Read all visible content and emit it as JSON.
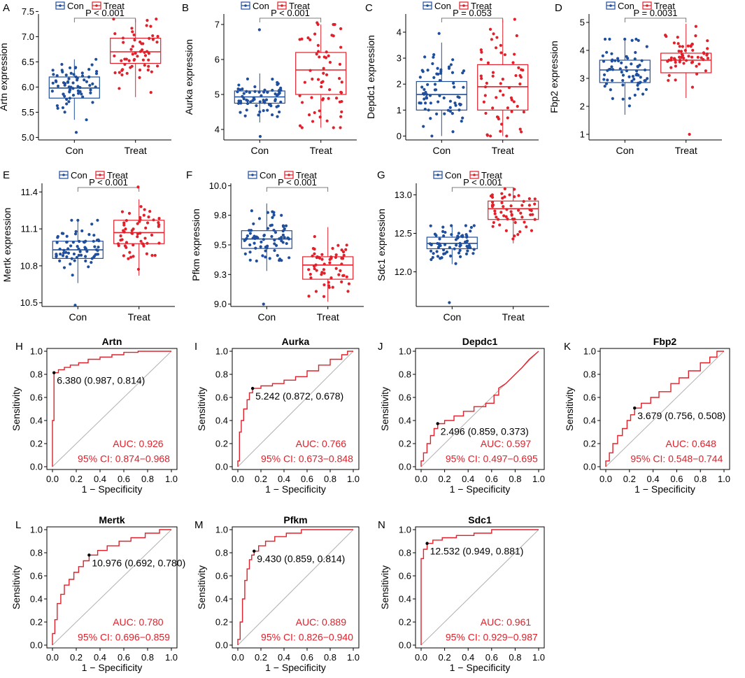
{
  "legend": {
    "con": "Con",
    "treat": "Treat"
  },
  "colors": {
    "con": "#1f4e9c",
    "treat": "#e0202a",
    "axis": "#000000",
    "diag": "#b0b0b0",
    "roc": "#e0202a"
  },
  "chart_data": [
    {
      "panel": "A",
      "type": "box",
      "gene": "Artn",
      "ylabel": "Artn expression",
      "categories": [
        "Con",
        "Treat"
      ],
      "pvalue": "P < 0.001",
      "ylim": [
        4.95,
        7.45
      ],
      "yticks": [
        5.0,
        5.5,
        6.0,
        6.5,
        7.0,
        7.5
      ],
      "series": [
        {
          "name": "Con",
          "q1": 5.78,
          "median": 5.98,
          "q3": 6.2,
          "lo": 5.35,
          "hi": 6.55,
          "min": 5.1,
          "max": 6.55,
          "n": 70
        },
        {
          "name": "Treat",
          "q1": 6.47,
          "median": 6.7,
          "q3": 6.97,
          "lo": 5.8,
          "hi": 7.35,
          "min": 5.8,
          "max": 7.35,
          "n": 58
        }
      ]
    },
    {
      "panel": "B",
      "type": "box",
      "gene": "Aurka",
      "ylabel": "Aurka expression",
      "categories": [
        "Con",
        "Treat"
      ],
      "pvalue": "P < 0.001",
      "ylim": [
        3.7,
        7.3
      ],
      "yticks": [
        4,
        5,
        6,
        7
      ],
      "series": [
        {
          "name": "Con",
          "q1": 4.75,
          "median": 4.93,
          "q3": 5.1,
          "lo": 4.2,
          "hi": 5.6,
          "min": 3.8,
          "max": 6.85,
          "n": 70
        },
        {
          "name": "Treat",
          "q1": 5.0,
          "median": 5.7,
          "q3": 6.2,
          "lo": 4.05,
          "hi": 7.0,
          "min": 4.05,
          "max": 7.05,
          "n": 58
        }
      ]
    },
    {
      "panel": "C",
      "type": "box",
      "gene": "Depdc1",
      "ylabel": "Depdc1 expression",
      "categories": [
        "Con",
        "Treat"
      ],
      "pvalue": "P = 0.053",
      "ylim": [
        -0.15,
        4.7
      ],
      "yticks": [
        0,
        1,
        2,
        3,
        4
      ],
      "series": [
        {
          "name": "Con",
          "q1": 1.0,
          "median": 1.6,
          "q3": 2.1,
          "lo": 0.0,
          "hi": 3.6,
          "min": 0.0,
          "max": 3.95,
          "n": 70
        },
        {
          "name": "Treat",
          "q1": 1.0,
          "median": 1.9,
          "q3": 2.75,
          "lo": 0.0,
          "hi": 4.5,
          "min": 0.0,
          "max": 4.5,
          "n": 58
        }
      ]
    },
    {
      "panel": "D",
      "type": "box",
      "gene": "Fbp2",
      "ylabel": "Fbp2 expression",
      "categories": [
        "Con",
        "Treat"
      ],
      "pvalue": "P = 0.0031",
      "ylim": [
        0.8,
        5.3
      ],
      "yticks": [
        1,
        2,
        3,
        4,
        5
      ],
      "series": [
        {
          "name": "Con",
          "q1": 2.85,
          "median": 3.3,
          "q3": 3.65,
          "lo": 1.7,
          "hi": 4.4,
          "min": 1.7,
          "max": 4.4,
          "n": 70
        },
        {
          "name": "Treat",
          "q1": 3.2,
          "median": 3.65,
          "q3": 3.9,
          "lo": 2.3,
          "hi": 4.95,
          "min": 1.0,
          "max": 4.95,
          "n": 58
        }
      ]
    },
    {
      "panel": "E",
      "type": "box",
      "gene": "Mertk",
      "ylabel": "Mertk expression",
      "categories": [
        "Con",
        "Treat"
      ],
      "pvalue": "P < 0.001",
      "ylim": [
        10.47,
        11.47
      ],
      "yticks": [
        10.5,
        10.8,
        11.1,
        11.4
      ],
      "series": [
        {
          "name": "Con",
          "q1": 10.86,
          "median": 10.93,
          "q3": 11.0,
          "lo": 10.66,
          "hi": 11.17,
          "min": 10.48,
          "max": 11.17,
          "n": 70
        },
        {
          "name": "Treat",
          "q1": 10.98,
          "median": 11.07,
          "q3": 11.17,
          "lo": 10.72,
          "hi": 11.34,
          "min": 10.72,
          "max": 11.44,
          "n": 58
        }
      ]
    },
    {
      "panel": "F",
      "type": "box",
      "gene": "Pfkm",
      "ylabel": "Pfkm expression",
      "categories": [
        "Con",
        "Treat"
      ],
      "pvalue": "P < 0.001",
      "ylim": [
        8.98,
        10.02
      ],
      "yticks": [
        9.0,
        9.25,
        9.5,
        9.75,
        10.0
      ],
      "series": [
        {
          "name": "Con",
          "q1": 9.47,
          "median": 9.55,
          "q3": 9.62,
          "lo": 9.28,
          "hi": 9.85,
          "min": 9.0,
          "max": 9.85,
          "n": 70
        },
        {
          "name": "Treat",
          "q1": 9.21,
          "median": 9.33,
          "q3": 9.4,
          "lo": 9.02,
          "hi": 9.65,
          "min": 9.02,
          "max": 9.65,
          "n": 58
        }
      ]
    },
    {
      "panel": "G",
      "type": "box",
      "gene": "Sdc1",
      "ylabel": "Sdc1 expression",
      "categories": [
        "Con",
        "Treat"
      ],
      "pvalue": "P < 0.001",
      "ylim": [
        11.55,
        13.15
      ],
      "yticks": [
        12.0,
        12.5,
        13.0
      ],
      "series": [
        {
          "name": "Con",
          "q1": 12.3,
          "median": 12.37,
          "q3": 12.45,
          "lo": 12.1,
          "hi": 12.6,
          "min": 11.6,
          "max": 12.6,
          "n": 70
        },
        {
          "name": "Treat",
          "q1": 12.68,
          "median": 12.82,
          "q3": 12.92,
          "lo": 12.37,
          "hi": 13.1,
          "min": 12.37,
          "max": 13.1,
          "n": 58
        }
      ]
    },
    {
      "panel": "H",
      "type": "line",
      "title": "Artn",
      "xlabel": "1 − Specificity",
      "ylabel": "Sensitivity",
      "xlim": [
        0,
        1
      ],
      "ylim": [
        0,
        1
      ],
      "ticks": [
        "0.0",
        "0.2",
        "0.4",
        "0.6",
        "0.8",
        "1.0"
      ],
      "cutoff": {
        "label": "6.380 (0.987, 0.814)",
        "fpr": 0.013,
        "tpr": 0.814
      },
      "auc": "AUC: 0.926",
      "ci": "95% CI: 0.874−0.968",
      "roc": [
        [
          0,
          0
        ],
        [
          0,
          0.4
        ],
        [
          0.013,
          0.4
        ],
        [
          0.013,
          0.814
        ],
        [
          0.05,
          0.814
        ],
        [
          0.05,
          0.84
        ],
        [
          0.1,
          0.84
        ],
        [
          0.1,
          0.86
        ],
        [
          0.15,
          0.86
        ],
        [
          0.15,
          0.88
        ],
        [
          0.22,
          0.88
        ],
        [
          0.22,
          0.9
        ],
        [
          0.3,
          0.9
        ],
        [
          0.3,
          0.93
        ],
        [
          0.4,
          0.93
        ],
        [
          0.4,
          0.95
        ],
        [
          0.5,
          0.95
        ],
        [
          0.5,
          0.97
        ],
        [
          0.6,
          0.97
        ],
        [
          0.6,
          0.99
        ],
        [
          0.72,
          0.99
        ],
        [
          0.72,
          1
        ],
        [
          1,
          1
        ]
      ]
    },
    {
      "panel": "I",
      "type": "line",
      "title": "Aurka",
      "xlabel": "1 − Specificity",
      "ylabel": "Sensitivity",
      "xlim": [
        0,
        1
      ],
      "ylim": [
        0,
        1
      ],
      "ticks": [
        "0.0",
        "0.2",
        "0.4",
        "0.6",
        "0.8",
        "1.0"
      ],
      "cutoff": {
        "label": "5.242 (0.872, 0.678)",
        "fpr": 0.128,
        "tpr": 0.678
      },
      "auc": "AUC: 0.766",
      "ci": "95% CI: 0.673−0.848",
      "roc": [
        [
          0,
          0
        ],
        [
          0,
          0.05
        ],
        [
          0.014,
          0.05
        ],
        [
          0.014,
          0.3
        ],
        [
          0.03,
          0.3
        ],
        [
          0.03,
          0.4
        ],
        [
          0.05,
          0.4
        ],
        [
          0.05,
          0.5
        ],
        [
          0.08,
          0.5
        ],
        [
          0.08,
          0.58
        ],
        [
          0.1,
          0.58
        ],
        [
          0.1,
          0.64
        ],
        [
          0.128,
          0.64
        ],
        [
          0.128,
          0.678
        ],
        [
          0.2,
          0.678
        ],
        [
          0.2,
          0.7
        ],
        [
          0.3,
          0.7
        ],
        [
          0.3,
          0.72
        ],
        [
          0.4,
          0.72
        ],
        [
          0.4,
          0.75
        ],
        [
          0.5,
          0.75
        ],
        [
          0.5,
          0.78
        ],
        [
          0.6,
          0.78
        ],
        [
          0.6,
          0.83
        ],
        [
          0.7,
          0.83
        ],
        [
          0.7,
          0.88
        ],
        [
          0.8,
          0.88
        ],
        [
          0.8,
          0.93
        ],
        [
          0.9,
          0.93
        ],
        [
          0.9,
          0.97
        ],
        [
          0.95,
          0.97
        ],
        [
          0.95,
          1
        ],
        [
          1,
          1
        ]
      ]
    },
    {
      "panel": "J",
      "type": "line",
      "title": "Depdc1",
      "xlabel": "1 − Specificity",
      "ylabel": "Sensitivity",
      "xlim": [
        0,
        1
      ],
      "ylim": [
        0,
        1
      ],
      "ticks": [
        "0.0",
        "0.2",
        "0.4",
        "0.6",
        "0.8",
        "1.0"
      ],
      "cutoff": {
        "label": "2.496 (0.859, 0.373)",
        "fpr": 0.141,
        "tpr": 0.373
      },
      "auc": "AUC: 0.597",
      "ci": "95% CI: 0.497−0.695",
      "roc": [
        [
          0,
          0
        ],
        [
          0,
          0.05
        ],
        [
          0.02,
          0.05
        ],
        [
          0.02,
          0.12
        ],
        [
          0.05,
          0.12
        ],
        [
          0.05,
          0.2
        ],
        [
          0.08,
          0.2
        ],
        [
          0.08,
          0.27
        ],
        [
          0.11,
          0.27
        ],
        [
          0.11,
          0.33
        ],
        [
          0.141,
          0.33
        ],
        [
          0.141,
          0.373
        ],
        [
          0.2,
          0.373
        ],
        [
          0.2,
          0.4
        ],
        [
          0.28,
          0.4
        ],
        [
          0.28,
          0.44
        ],
        [
          0.36,
          0.44
        ],
        [
          0.36,
          0.48
        ],
        [
          0.45,
          0.48
        ],
        [
          0.45,
          0.52
        ],
        [
          0.55,
          0.52
        ],
        [
          0.55,
          0.55
        ],
        [
          0.62,
          0.55
        ],
        [
          0.62,
          0.62
        ],
        [
          0.66,
          0.62
        ],
        [
          0.66,
          0.68
        ],
        [
          0.72,
          0.72
        ],
        [
          0.8,
          0.8
        ],
        [
          0.86,
          0.86
        ],
        [
          0.92,
          0.93
        ],
        [
          1,
          1
        ]
      ]
    },
    {
      "panel": "K",
      "type": "line",
      "title": "Fbp2",
      "xlabel": "1 − Specificity",
      "ylabel": "Sensitivity",
      "xlim": [
        0,
        1
      ],
      "ylim": [
        0,
        1
      ],
      "ticks": [
        "0.0",
        "0.2",
        "0.4",
        "0.6",
        "0.8",
        "1.0"
      ],
      "cutoff": {
        "label": "3.679 (0.756, 0.508)",
        "fpr": 0.244,
        "tpr": 0.508
      },
      "auc": "AUC: 0.648",
      "ci": "95% CI: 0.548−0.744",
      "roc": [
        [
          0,
          0
        ],
        [
          0,
          0.05
        ],
        [
          0.03,
          0.05
        ],
        [
          0.03,
          0.12
        ],
        [
          0.06,
          0.12
        ],
        [
          0.06,
          0.2
        ],
        [
          0.1,
          0.2
        ],
        [
          0.1,
          0.27
        ],
        [
          0.14,
          0.27
        ],
        [
          0.14,
          0.33
        ],
        [
          0.18,
          0.33
        ],
        [
          0.18,
          0.4
        ],
        [
          0.21,
          0.4
        ],
        [
          0.21,
          0.45
        ],
        [
          0.244,
          0.45
        ],
        [
          0.244,
          0.508
        ],
        [
          0.3,
          0.508
        ],
        [
          0.3,
          0.55
        ],
        [
          0.38,
          0.55
        ],
        [
          0.38,
          0.6
        ],
        [
          0.45,
          0.6
        ],
        [
          0.45,
          0.65
        ],
        [
          0.55,
          0.65
        ],
        [
          0.55,
          0.72
        ],
        [
          0.62,
          0.72
        ],
        [
          0.62,
          0.77
        ],
        [
          0.7,
          0.77
        ],
        [
          0.7,
          0.83
        ],
        [
          0.8,
          0.83
        ],
        [
          0.8,
          0.9
        ],
        [
          0.88,
          0.9
        ],
        [
          0.88,
          0.95
        ],
        [
          0.94,
          0.95
        ],
        [
          0.94,
          1
        ],
        [
          1,
          1
        ]
      ]
    },
    {
      "panel": "L",
      "type": "line",
      "title": "Mertk",
      "xlabel": "1 − Specificity",
      "ylabel": "Sensitivity",
      "xlim": [
        0,
        1
      ],
      "ylim": [
        0,
        1
      ],
      "ticks": [
        "0.0",
        "0.2",
        "0.4",
        "0.6",
        "0.8",
        "1.0"
      ],
      "cutoff": {
        "label": "10.976 (0.692, 0.780)",
        "fpr": 0.308,
        "tpr": 0.78
      },
      "auc": "AUC: 0.780",
      "ci": "95% CI: 0.696−0.859",
      "roc": [
        [
          0,
          0
        ],
        [
          0,
          0.1
        ],
        [
          0.02,
          0.1
        ],
        [
          0.02,
          0.22
        ],
        [
          0.04,
          0.22
        ],
        [
          0.04,
          0.36
        ],
        [
          0.07,
          0.36
        ],
        [
          0.07,
          0.44
        ],
        [
          0.1,
          0.44
        ],
        [
          0.1,
          0.52
        ],
        [
          0.14,
          0.52
        ],
        [
          0.14,
          0.57
        ],
        [
          0.18,
          0.57
        ],
        [
          0.18,
          0.63
        ],
        [
          0.22,
          0.63
        ],
        [
          0.22,
          0.68
        ],
        [
          0.26,
          0.68
        ],
        [
          0.26,
          0.73
        ],
        [
          0.308,
          0.73
        ],
        [
          0.308,
          0.78
        ],
        [
          0.38,
          0.78
        ],
        [
          0.38,
          0.82
        ],
        [
          0.46,
          0.82
        ],
        [
          0.46,
          0.86
        ],
        [
          0.56,
          0.86
        ],
        [
          0.56,
          0.9
        ],
        [
          0.66,
          0.9
        ],
        [
          0.66,
          0.93
        ],
        [
          0.78,
          0.93
        ],
        [
          0.78,
          0.97
        ],
        [
          0.9,
          0.97
        ],
        [
          0.9,
          1
        ],
        [
          1,
          1
        ]
      ]
    },
    {
      "panel": "M",
      "type": "line",
      "title": "Pfkm",
      "xlabel": "1 − Specificity",
      "ylabel": "Sensitivity",
      "xlim": [
        0,
        1
      ],
      "ylim": [
        0,
        1
      ],
      "ticks": [
        "0.0",
        "0.2",
        "0.4",
        "0.6",
        "0.8",
        "1.0"
      ],
      "cutoff": {
        "label": "9.430 (0.859, 0.814)",
        "fpr": 0.141,
        "tpr": 0.814
      },
      "auc": "AUC: 0.889",
      "ci": "95% CI: 0.826−0.940",
      "roc": [
        [
          0,
          0
        ],
        [
          0,
          0.05
        ],
        [
          0.02,
          0.05
        ],
        [
          0.02,
          0.2
        ],
        [
          0.04,
          0.2
        ],
        [
          0.04,
          0.4
        ],
        [
          0.06,
          0.4
        ],
        [
          0.06,
          0.56
        ],
        [
          0.08,
          0.56
        ],
        [
          0.08,
          0.66
        ],
        [
          0.1,
          0.66
        ],
        [
          0.1,
          0.74
        ],
        [
          0.12,
          0.74
        ],
        [
          0.12,
          0.78
        ],
        [
          0.141,
          0.78
        ],
        [
          0.141,
          0.814
        ],
        [
          0.18,
          0.814
        ],
        [
          0.18,
          0.86
        ],
        [
          0.24,
          0.86
        ],
        [
          0.24,
          0.9
        ],
        [
          0.32,
          0.9
        ],
        [
          0.32,
          0.94
        ],
        [
          0.42,
          0.94
        ],
        [
          0.42,
          0.97
        ],
        [
          0.55,
          0.97
        ],
        [
          0.55,
          1
        ],
        [
          1,
          1
        ]
      ]
    },
    {
      "panel": "N",
      "type": "line",
      "title": "Sdc1",
      "xlabel": "1 − Specificity",
      "ylabel": "Sensitivity",
      "xlim": [
        0,
        1
      ],
      "ylim": [
        0,
        1
      ],
      "ticks": [
        "0.0",
        "0.2",
        "0.4",
        "0.6",
        "0.8",
        "1.0"
      ],
      "cutoff": {
        "label": "12.532 (0.949, 0.881)",
        "fpr": 0.051,
        "tpr": 0.881
      },
      "auc": "AUC: 0.961",
      "ci": "95% CI: 0.929−0.987",
      "roc": [
        [
          0,
          0
        ],
        [
          0,
          0.75
        ],
        [
          0.02,
          0.75
        ],
        [
          0.02,
          0.83
        ],
        [
          0.051,
          0.83
        ],
        [
          0.051,
          0.881
        ],
        [
          0.1,
          0.881
        ],
        [
          0.1,
          0.91
        ],
        [
          0.18,
          0.91
        ],
        [
          0.18,
          0.93
        ],
        [
          0.3,
          0.93
        ],
        [
          0.3,
          0.95
        ],
        [
          0.45,
          0.95
        ],
        [
          0.45,
          0.97
        ],
        [
          0.6,
          0.97
        ],
        [
          0.6,
          1
        ],
        [
          1,
          1
        ]
      ]
    }
  ]
}
